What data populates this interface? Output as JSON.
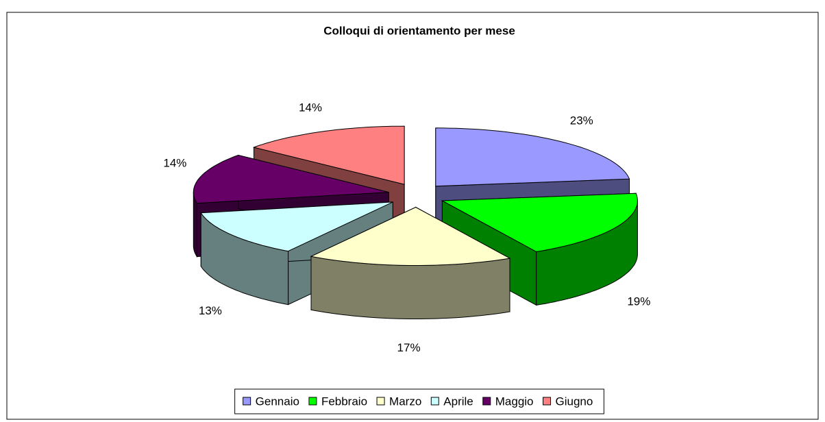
{
  "chart_data": {
    "type": "pie3d",
    "title": "Colloqui di orientamento per mese",
    "categories": [
      "Gennaio",
      "Febbraio",
      "Marzo",
      "Aprile",
      "Maggio",
      "Giugno"
    ],
    "values": [
      23,
      19,
      17,
      13,
      14,
      14
    ],
    "value_labels": [
      "23%",
      "19%",
      "17%",
      "13%",
      "14%",
      "14%"
    ],
    "colors": [
      "#9999ff",
      "#00ff00",
      "#ffffcc",
      "#ccffff",
      "#660066",
      "#ff8080"
    ],
    "legend": "bottom"
  }
}
